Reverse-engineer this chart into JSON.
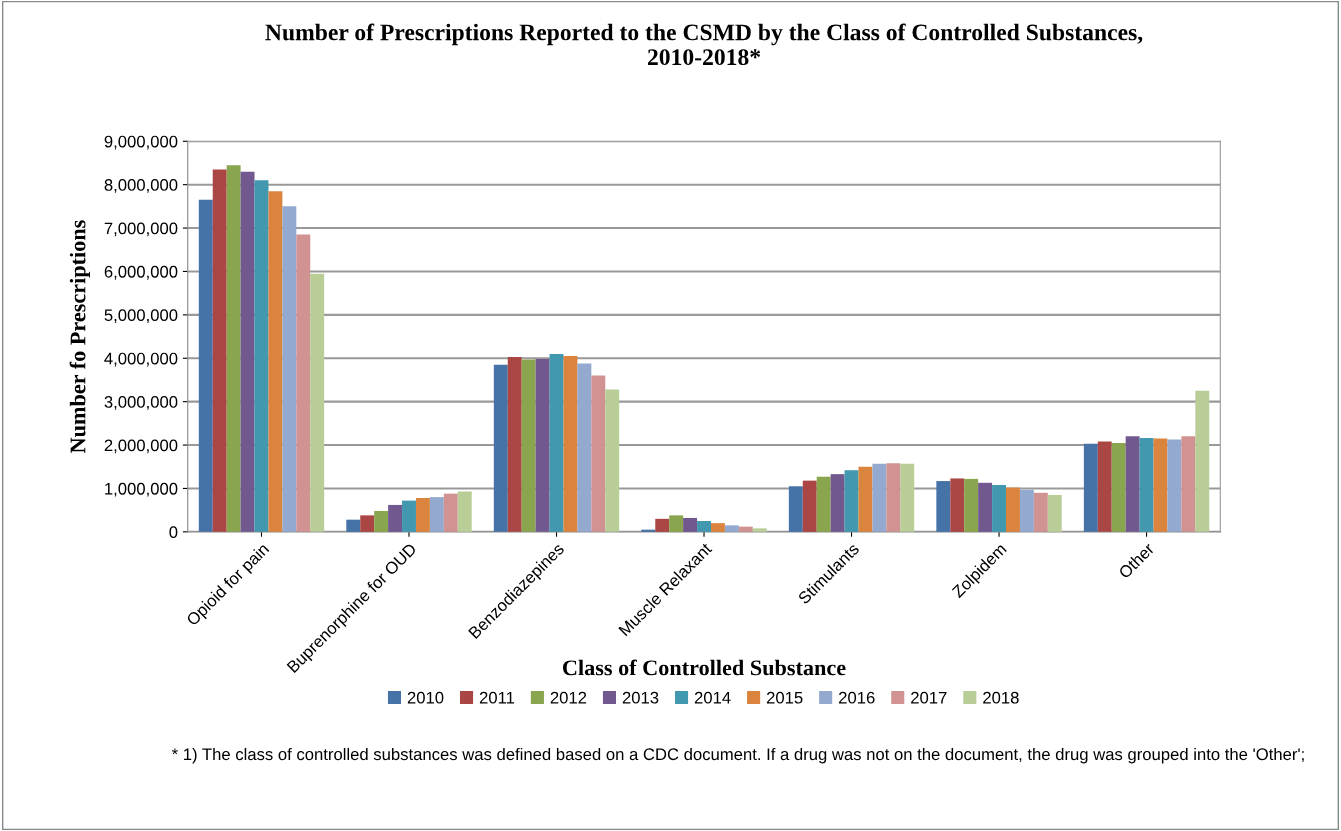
{
  "chart_data": {
    "type": "bar",
    "title": "Number of Prescriptions Reported to the CSMD by the Class of Controlled Substances,\n2010-2018*",
    "xlabel": "Class of Controlled Substance",
    "ylabel": "Number fo Prescriptions",
    "categories": [
      "Opioid for pain",
      "Buprenorphine for OUD",
      "Benzodiazepines",
      "Muscle Relaxant",
      "Stimulants",
      "Zolpidem",
      "Other"
    ],
    "series": [
      {
        "name": "2010",
        "color": "#4572a7",
        "values": [
          7650000,
          280000,
          3850000,
          50000,
          1050000,
          1170000,
          2030000
        ]
      },
      {
        "name": "2011",
        "color": "#aa4643",
        "values": [
          8350000,
          380000,
          4030000,
          300000,
          1180000,
          1230000,
          2080000
        ]
      },
      {
        "name": "2012",
        "color": "#89a54e",
        "values": [
          8450000,
          480000,
          3970000,
          380000,
          1270000,
          1220000,
          2050000
        ]
      },
      {
        "name": "2013",
        "color": "#71588f",
        "values": [
          8300000,
          620000,
          3980000,
          320000,
          1330000,
          1130000,
          2200000
        ]
      },
      {
        "name": "2014",
        "color": "#4198af",
        "values": [
          8100000,
          720000,
          4100000,
          250000,
          1420000,
          1080000,
          2160000
        ]
      },
      {
        "name": "2015",
        "color": "#db843d",
        "values": [
          7850000,
          780000,
          4050000,
          200000,
          1500000,
          1020000,
          2150000
        ]
      },
      {
        "name": "2016",
        "color": "#93a9cf",
        "values": [
          7500000,
          800000,
          3880000,
          150000,
          1570000,
          970000,
          2130000
        ]
      },
      {
        "name": "2017",
        "color": "#d19392",
        "values": [
          6850000,
          880000,
          3600000,
          120000,
          1580000,
          900000,
          2200000
        ]
      },
      {
        "name": "2018",
        "color": "#b9cd96",
        "values": [
          5950000,
          930000,
          3280000,
          80000,
          1570000,
          850000,
          3250000
        ]
      }
    ],
    "ylim": [
      0,
      9000000
    ],
    "yticks": [
      {
        "value": 0,
        "label": "0"
      },
      {
        "value": 1000000,
        "label": "1,000,000"
      },
      {
        "value": 2000000,
        "label": "2,000,000"
      },
      {
        "value": 3000000,
        "label": "3,000,000"
      },
      {
        "value": 4000000,
        "label": "4,000,000"
      },
      {
        "value": 5000000,
        "label": "5,000,000"
      },
      {
        "value": 6000000,
        "label": "6,000,000"
      },
      {
        "value": 7000000,
        "label": "7,000,000"
      },
      {
        "value": 8000000,
        "label": "8,000,000"
      },
      {
        "value": 9000000,
        "label": "9,000,000"
      }
    ],
    "grid": "y",
    "legend": "bottom",
    "annotations": [
      "* 1) The class of controlled substances was defined based on a CDC document. If a drug was not on the document, the drug was grouped into the 'Other';"
    ]
  }
}
